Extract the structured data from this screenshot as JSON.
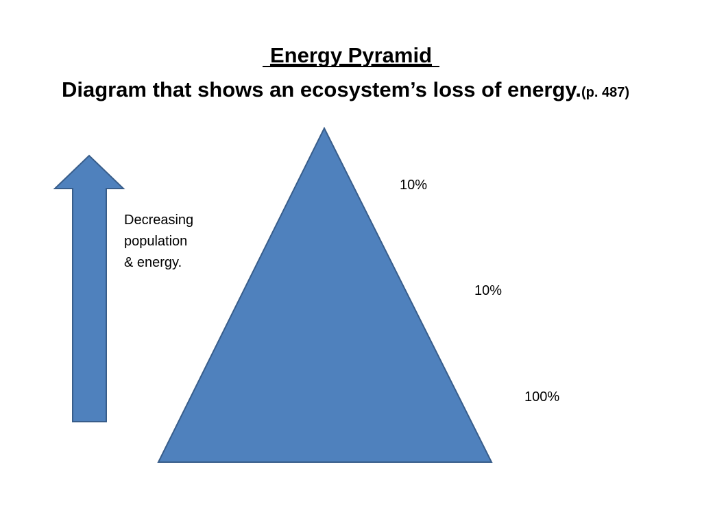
{
  "title": "Energy Pyramid",
  "subtitle": {
    "text": "Diagram that shows an ecosystem’s loss of energy.",
    "page_ref": "(p. 487)"
  },
  "arrow_label": [
    "Decreasing",
    "population",
    "& energy."
  ],
  "level_labels": [
    "10%",
    "10%",
    "100%"
  ]
}
